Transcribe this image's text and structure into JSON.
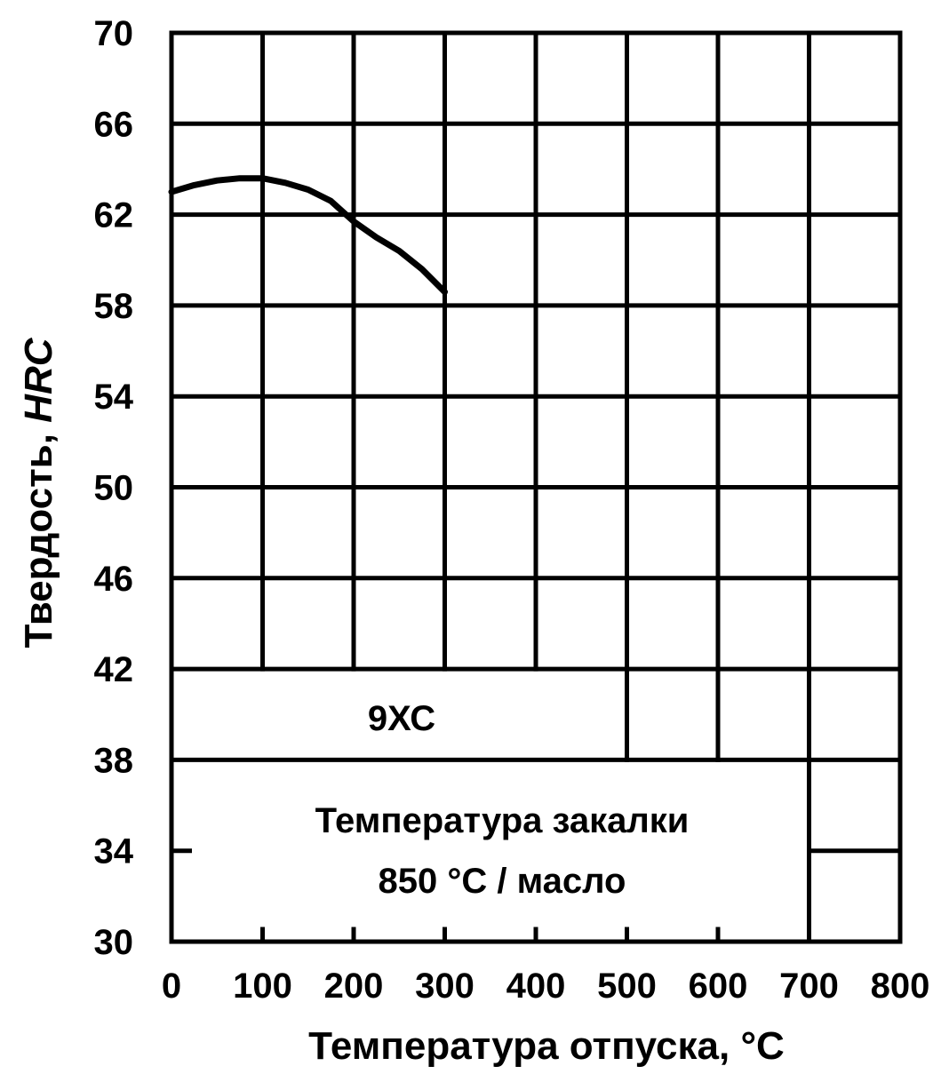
{
  "chart_data": {
    "type": "line",
    "xlabel": "Температура отпуска, °C",
    "ylabel_main": "Твердость, ",
    "ylabel_unit": "HRC",
    "xlim": [
      0,
      800
    ],
    "ylim": [
      30,
      70
    ],
    "x_ticks": [
      "0",
      "100",
      "200",
      "300",
      "400",
      "500",
      "600",
      "700",
      "800"
    ],
    "y_ticks": [
      "70",
      "66",
      "62",
      "58",
      "54",
      "50",
      "46",
      "42",
      "38",
      "34",
      "30"
    ],
    "grid": true,
    "series": [
      {
        "name": "9ХС",
        "x": [
          0,
          25,
          50,
          75,
          100,
          125,
          150,
          175,
          200,
          225,
          250,
          275,
          300
        ],
        "y": [
          63.0,
          63.3,
          63.5,
          63.6,
          63.6,
          63.4,
          63.1,
          62.6,
          61.7,
          61.0,
          60.4,
          59.6,
          58.6
        ]
      }
    ],
    "annotations": {
      "steel": "9ХС",
      "quench_line1": "Температура закалки",
      "quench_line2": "850 °C / масло"
    },
    "colors": {
      "line": "#000000",
      "grid": "#000000",
      "background": "#ffffff"
    }
  }
}
